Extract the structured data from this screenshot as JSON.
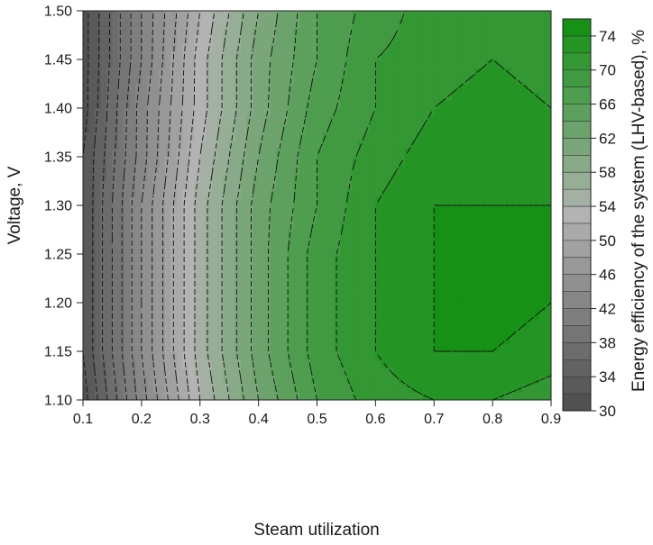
{
  "chart_data": {
    "type": "heatmap",
    "subtype": "filled-contour",
    "xlabel": "Steam utilization",
    "ylabel": "Voltage, V",
    "colorbar_label": "Energy efficiency of the system (LHV-based), %",
    "xlim": [
      0.1,
      0.9
    ],
    "ylim": [
      1.1,
      1.5
    ],
    "x_ticks": [
      "0.1",
      "0.2",
      "0.3",
      "0.4",
      "0.5",
      "0.6",
      "0.7",
      "0.8",
      "0.9"
    ],
    "y_ticks": [
      "1.10",
      "1.15",
      "1.20",
      "1.25",
      "1.30",
      "1.35",
      "1.40",
      "1.45",
      "1.50"
    ],
    "colorbar_ticks": [
      "30",
      "34",
      "38",
      "42",
      "46",
      "50",
      "54",
      "58",
      "62",
      "66",
      "70",
      "74"
    ],
    "colorbar_range": [
      30,
      76
    ],
    "contour_interval": 2,
    "contour_line_style": "dashed",
    "color_low": "#4d4d4d",
    "color_mid": "#b3b3b3",
    "color_high": "#0f8f0f",
    "efficiency_peak": {
      "x": 0.82,
      "y": 1.24,
      "value": 75
    },
    "x": [
      0.1,
      0.2,
      0.3,
      0.4,
      0.5,
      0.6,
      0.7,
      0.8,
      0.9
    ],
    "y": [
      1.1,
      1.15,
      1.2,
      1.25,
      1.3,
      1.35,
      1.4,
      1.45,
      1.5
    ],
    "z": [
      [
        31,
        43,
        54,
        62,
        68,
        71,
        72,
        72,
        71
      ],
      [
        32,
        44,
        55,
        63,
        69,
        72,
        74,
        74,
        73
      ],
      [
        32,
        44,
        55,
        63,
        69,
        72,
        74,
        75,
        74
      ],
      [
        32,
        44,
        55,
        63,
        69,
        72,
        74,
        75,
        74
      ],
      [
        32,
        44,
        55,
        63,
        68,
        72,
        74,
        74,
        74
      ],
      [
        32,
        43,
        54,
        62,
        68,
        71,
        73,
        73,
        73
      ],
      [
        31,
        43,
        53,
        61,
        67,
        70,
        72,
        73,
        72
      ],
      [
        31,
        42,
        53,
        61,
        66,
        70,
        71,
        72,
        71
      ],
      [
        31,
        42,
        52,
        60,
        66,
        69,
        71,
        71,
        71
      ]
    ]
  }
}
